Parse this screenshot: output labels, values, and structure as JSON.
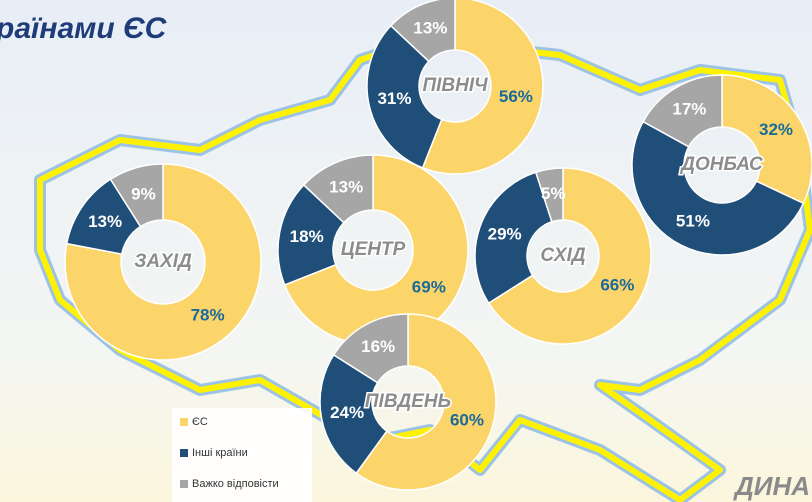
{
  "header": {
    "title": "раїнами ЄС"
  },
  "footer": {
    "text": "ДИНА"
  },
  "chart_data": [
    {
      "type": "pie",
      "title": "ПІВНІЧ",
      "categories": [
        "ЄС",
        "Інші країни",
        "Важко відповісти"
      ],
      "values": [
        56,
        31,
        13
      ],
      "value_labels": [
        "56%",
        "31%",
        "13%"
      ],
      "colors": [
        "#fcd56a",
        "#1f4e79",
        "#a6a6a6"
      ]
    },
    {
      "type": "pie",
      "title": "ЗАХІД",
      "categories": [
        "ЄС",
        "Інші країни",
        "Важко відповісти"
      ],
      "values": [
        78,
        13,
        9
      ],
      "value_labels": [
        "78%",
        "13%",
        "9%"
      ],
      "colors": [
        "#fcd56a",
        "#1f4e79",
        "#a6a6a6"
      ]
    },
    {
      "type": "pie",
      "title": "ЦЕНТР",
      "categories": [
        "ЄС",
        "Інші країни",
        "Важко відповісти"
      ],
      "values": [
        69,
        18,
        13
      ],
      "value_labels": [
        "69%",
        "18%",
        "13%"
      ],
      "colors": [
        "#fcd56a",
        "#1f4e79",
        "#a6a6a6"
      ]
    },
    {
      "type": "pie",
      "title": "СХІД",
      "categories": [
        "ЄС",
        "Інші країни",
        "Важко відповісти"
      ],
      "values": [
        66,
        29,
        5
      ],
      "value_labels": [
        "66%",
        "29%",
        "5%"
      ],
      "colors": [
        "#fcd56a",
        "#1f4e79",
        "#a6a6a6"
      ]
    },
    {
      "type": "pie",
      "title": "ДОНБАС",
      "categories": [
        "ЄС",
        "Інші країни",
        "Важко відповісти"
      ],
      "values": [
        32,
        51,
        17
      ],
      "value_labels": [
        "32%",
        "51%",
        "17%"
      ],
      "colors": [
        "#fcd56a",
        "#1f4e79",
        "#a6a6a6"
      ]
    },
    {
      "type": "pie",
      "title": "ПІВДЕНЬ",
      "categories": [
        "ЄС",
        "Інші країни",
        "Важко відповісти"
      ],
      "values": [
        60,
        24,
        16
      ],
      "value_labels": [
        "60%",
        "24%",
        "16%"
      ],
      "colors": [
        "#fcd56a",
        "#1f4e79",
        "#a6a6a6"
      ]
    }
  ]
}
